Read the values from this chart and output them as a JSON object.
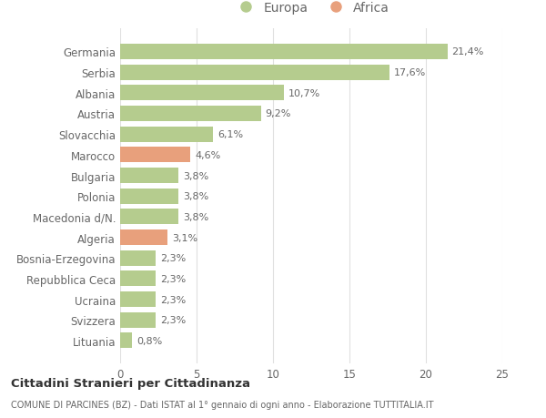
{
  "categories": [
    "Germania",
    "Serbia",
    "Albania",
    "Austria",
    "Slovacchia",
    "Marocco",
    "Bulgaria",
    "Polonia",
    "Macedonia d/N.",
    "Algeria",
    "Bosnia-Erzegovina",
    "Repubblica Ceca",
    "Ucraina",
    "Svizzera",
    "Lituania"
  ],
  "values": [
    21.4,
    17.6,
    10.7,
    9.2,
    6.1,
    4.6,
    3.8,
    3.8,
    3.8,
    3.1,
    2.3,
    2.3,
    2.3,
    2.3,
    0.8
  ],
  "labels": [
    "21,4%",
    "17,6%",
    "10,7%",
    "9,2%",
    "6,1%",
    "4,6%",
    "3,8%",
    "3,8%",
    "3,8%",
    "3,1%",
    "2,3%",
    "2,3%",
    "2,3%",
    "2,3%",
    "0,8%"
  ],
  "continents": [
    "Europa",
    "Europa",
    "Europa",
    "Europa",
    "Europa",
    "Africa",
    "Europa",
    "Europa",
    "Europa",
    "Africa",
    "Europa",
    "Europa",
    "Europa",
    "Europa",
    "Europa"
  ],
  "europa_color": "#b5cc8e",
  "africa_color": "#e8a07c",
  "background_color": "#ffffff",
  "grid_color": "#e0e0e0",
  "text_color": "#666666",
  "title": "Cittadini Stranieri per Cittadinanza",
  "subtitle": "COMUNE DI PARCINES (BZ) - Dati ISTAT al 1° gennaio di ogni anno - Elaborazione TUTTITALIA.IT",
  "xlim": [
    0,
    25
  ],
  "xticks": [
    0,
    5,
    10,
    15,
    20,
    25
  ],
  "legend_europa": "Europa",
  "legend_africa": "Africa"
}
